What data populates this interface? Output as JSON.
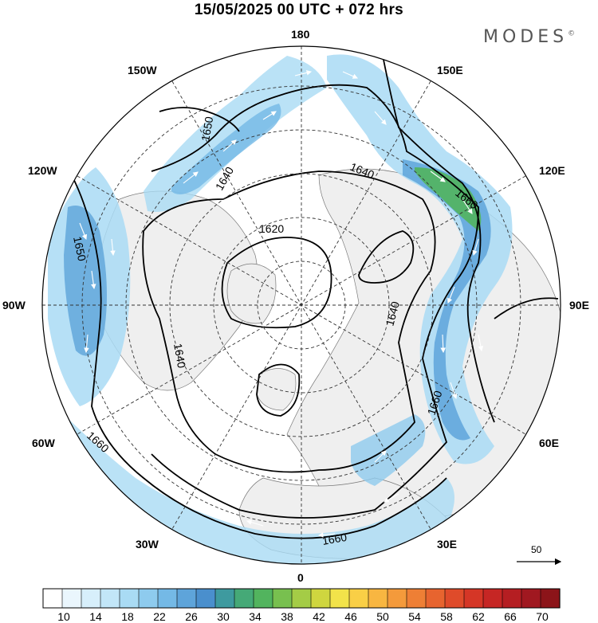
{
  "header": {
    "title": "15/05/2025  00 UTC  + 072 hrs",
    "brand": "MODES",
    "brand_mark": "©"
  },
  "longitude_labels": {
    "top": "180",
    "top_left": "150W",
    "top_right": "150E",
    "upper_left": "120W",
    "upper_right": "120E",
    "left": "90W",
    "right": "90E",
    "lower_left": "60W",
    "lower_right": "60E",
    "bottom_left": "30W",
    "bottom_right": "30E",
    "bottom": "0"
  },
  "contours": {
    "c1620": "1620",
    "c1640_a": "1640",
    "c1640_b": "1640",
    "c1640_c": "1640",
    "c1640_d": "1640",
    "c1650_a": "1650",
    "c1650_b": "1650",
    "c1660_a": "1660",
    "c1660_b": "1660",
    "c1660_c": "1660",
    "c1660_d": "1660"
  },
  "reference_vector": {
    "label": "50"
  },
  "colorbar": {
    "tick_labels": [
      "10",
      "14",
      "18",
      "22",
      "26",
      "30",
      "34",
      "38",
      "42",
      "46",
      "50",
      "54",
      "58",
      "62",
      "66",
      "70"
    ],
    "colors": [
      "#ffffff",
      "#eaf6fd",
      "#d7effb",
      "#c2e6f8",
      "#a9dbf4",
      "#8ecbee",
      "#74b9e6",
      "#5ea4da",
      "#4a8fcd",
      "#3e9a9f",
      "#45a977",
      "#52b45e",
      "#78c04f",
      "#a4cc46",
      "#cfd63f",
      "#f2e34a",
      "#f9cf46",
      "#f8b641",
      "#f49a3b",
      "#ee7f35",
      "#e7642f",
      "#df4b2a",
      "#d53626",
      "#c62624",
      "#b51e22",
      "#a01820",
      "#8c1419"
    ]
  }
}
